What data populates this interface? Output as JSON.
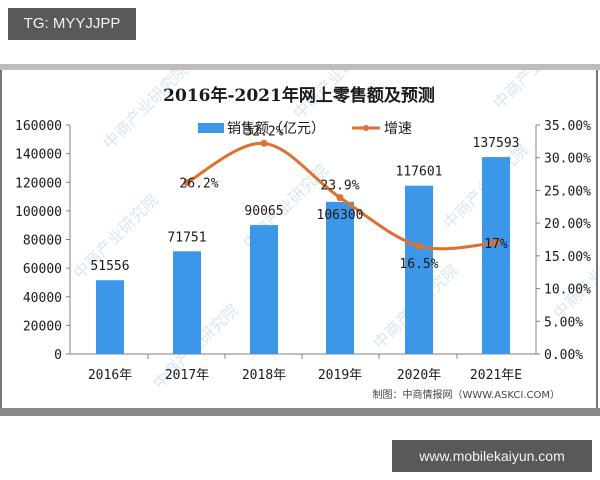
{
  "badge_top": {
    "label": "TG: MYYJJPP"
  },
  "badge_bottom": {
    "label": "www.mobilekaiyun.com"
  },
  "chart": {
    "title": "2016年-2021年网上零售额及预测",
    "legend": {
      "bar": "销售额（亿元）",
      "line": "增速"
    },
    "source": "制图：中商情报网（WWW.ASKCI.COM）",
    "watermark": "中商产业研究院",
    "colors": {
      "bar": "#3d97e8",
      "line": "#e0702f",
      "axis": "#808080",
      "text": "#1a1a1a"
    },
    "left_ticks": [
      "0",
      "20000",
      "40000",
      "60000",
      "80000",
      "100000",
      "120000",
      "140000",
      "160000"
    ],
    "right_ticks": [
      "0.00%",
      "5.00%",
      "10.00%",
      "15.00%",
      "20.00%",
      "25.00%",
      "30.00%",
      "35.00%"
    ],
    "categories": [
      "2016年",
      "2017年",
      "2018年",
      "2019年",
      "2020年",
      "2021年E"
    ],
    "bar_labels": [
      "51556",
      "71751",
      "90065",
      "106300",
      "117601",
      "137593"
    ],
    "line_labels": [
      "26.2%",
      "32.2%",
      "23.9%",
      "16.5%",
      "17%"
    ]
  },
  "chart_data": {
    "type": "bar",
    "title": "2016年-2021年网上零售额及预测",
    "categories": [
      "2016年",
      "2017年",
      "2018年",
      "2019年",
      "2020年",
      "2021年E"
    ],
    "series": [
      {
        "name": "销售额（亿元）",
        "type": "bar",
        "axis": "left",
        "values": [
          51556,
          71751,
          90065,
          106300,
          117601,
          137593
        ]
      },
      {
        "name": "增速",
        "type": "line",
        "axis": "right",
        "values": [
          null,
          26.2,
          32.2,
          23.9,
          16.5,
          17.0
        ]
      }
    ],
    "xlabel": "",
    "ylabel": "",
    "ylim": [
      0,
      160000
    ],
    "y2lim": [
      0,
      35
    ],
    "y2_format": "percent",
    "legend_position": "top",
    "grid": false,
    "source": "制图：中商情报网（WWW.ASKCI.COM）"
  }
}
